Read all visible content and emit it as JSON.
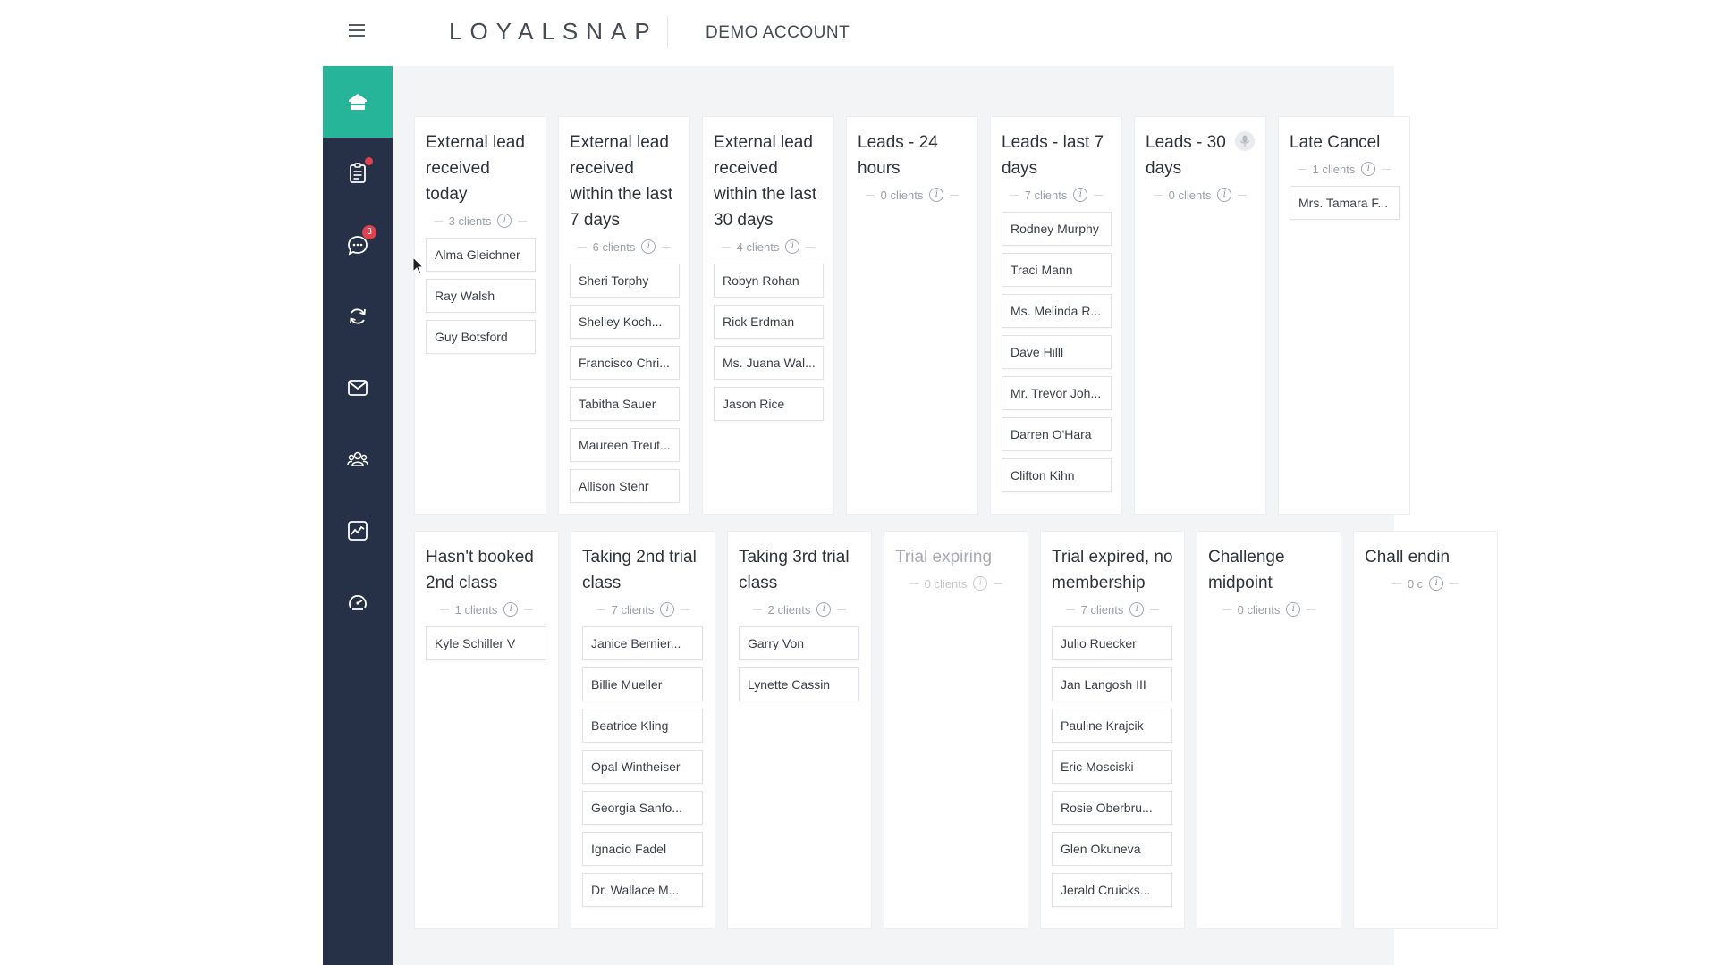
{
  "header": {
    "logo": "LOYALSNAP",
    "account": "DEMO ACCOUNT",
    "menu_icon": "hamburger-icon"
  },
  "sidebar": {
    "items": [
      {
        "icon": "home-icon",
        "active": true
      },
      {
        "icon": "tasks-icon",
        "dot": true
      },
      {
        "icon": "chat-icon",
        "badge": "3"
      },
      {
        "icon": "refresh-icon"
      },
      {
        "icon": "mail-icon"
      },
      {
        "icon": "clients-icon"
      },
      {
        "icon": "analytics-icon"
      },
      {
        "icon": "speedometer-icon"
      }
    ]
  },
  "board": {
    "row1": [
      {
        "title": "External lead received today",
        "count": "3 clients",
        "cards": [
          "Alma Gleichner",
          "Ray Walsh",
          "Guy Botsford"
        ]
      },
      {
        "title": "External lead received within the last 7 days",
        "count": "6 clients",
        "cards": [
          "Sheri Torphy",
          "Shelley Koch...",
          "Francisco Chri...",
          "Tabitha Sauer",
          "Maureen Treut...",
          "Allison Stehr"
        ]
      },
      {
        "title": "External lead received within the last 30 days",
        "count": "4 clients",
        "cards": [
          "Robyn Rohan",
          "Rick Erdman",
          "Ms. Juana Wal...",
          "Jason Rice"
        ]
      },
      {
        "title": "Leads - 24 hours",
        "count": "0 clients",
        "cards": []
      },
      {
        "title": "Leads - last 7 days",
        "count": "7 clients",
        "cards": [
          "Rodney Murphy",
          "Traci Mann",
          "Ms. Melinda R...",
          "Dave Hilll",
          "Mr. Trevor Joh...",
          "Darren O'Hara",
          "Clifton Kihn"
        ]
      },
      {
        "title": "Leads - 30 days",
        "count": "0 clients",
        "cards": [],
        "mic": true
      },
      {
        "title": "Late Cancel",
        "count": "1 clients",
        "cards": [
          "Mrs. Tamara F..."
        ]
      }
    ],
    "row2": [
      {
        "title": "Hasn't booked 2nd class",
        "count": "1 clients",
        "cards": [
          "Kyle Schiller V"
        ]
      },
      {
        "title": "Taking 2nd trial class",
        "count": "7 clients",
        "cards": [
          "Janice Bernier...",
          "Billie Mueller",
          "Beatrice Kling",
          "Opal Wintheiser",
          "Georgia Sanfo...",
          "Ignacio Fadel",
          "Dr. Wallace M..."
        ]
      },
      {
        "title": "Taking 3rd trial class",
        "count": "2 clients",
        "cards": [
          "Garry Von",
          "Lynette Cassin"
        ]
      },
      {
        "title": "Trial expiring",
        "count": "0 clients",
        "cards": [],
        "muted": true
      },
      {
        "title": "Trial expired, no membership",
        "count": "7 clients",
        "cards": [
          "Julio Ruecker",
          "Jan Langosh III",
          "Pauline Krajcik",
          "Eric Mosciski",
          "Rosie Oberbru...",
          "Glen Okuneva",
          "Jerald Cruicks..."
        ]
      },
      {
        "title": "Challenge midpoint",
        "count": "0 clients",
        "cards": []
      },
      {
        "title": "Chall endin",
        "count": "0 c",
        "cards": []
      }
    ]
  },
  "colors": {
    "sidebar_bg": "#263046",
    "accent": "#27b59a",
    "badge": "#e0414f",
    "board_bg": "#f2f4f6"
  }
}
